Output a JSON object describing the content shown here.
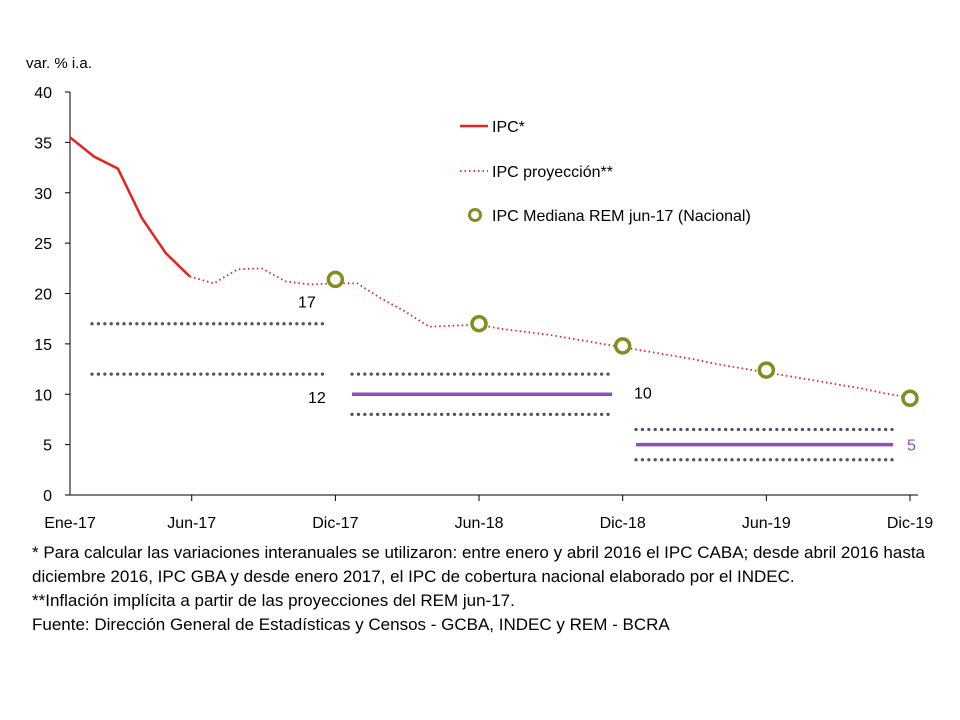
{
  "chart_data": {
    "type": "line",
    "ylabel": "var. % i.a.",
    "ylim": [
      0,
      40
    ],
    "yticks": [
      0,
      5,
      10,
      15,
      20,
      25,
      30,
      35,
      40
    ],
    "x_tick_labels": [
      "Ene-17",
      "Jun-17",
      "Dic-17",
      "Jun-18",
      "Dic-18",
      "Jun-19",
      "Dic-19"
    ],
    "legend_position": "top-right",
    "series": [
      {
        "name": "IPC*",
        "style": "solid",
        "color": "#e8201e",
        "points": [
          {
            "x": "2017-01",
            "y": 35.5
          },
          {
            "x": "2017-02",
            "y": 33.6
          },
          {
            "x": "2017-03",
            "y": 32.4
          },
          {
            "x": "2017-04",
            "y": 27.5
          },
          {
            "x": "2017-05",
            "y": 24.0
          },
          {
            "x": "2017-06",
            "y": 21.7
          }
        ]
      },
      {
        "name": "IPC proyección**",
        "style": "dotted",
        "color": "#e8201e",
        "points": [
          {
            "x": "2017-06",
            "y": 21.7
          },
          {
            "x": "2017-07",
            "y": 21.0
          },
          {
            "x": "2017-08",
            "y": 22.4
          },
          {
            "x": "2017-09",
            "y": 22.5
          },
          {
            "x": "2017-10",
            "y": 21.2
          },
          {
            "x": "2017-11",
            "y": 20.9
          },
          {
            "x": "2017-12",
            "y": 21.0
          },
          {
            "x": "2018-01",
            "y": 21.0
          },
          {
            "x": "2018-02",
            "y": 19.5
          },
          {
            "x": "2018-03",
            "y": 18.2
          },
          {
            "x": "2018-04",
            "y": 16.7
          },
          {
            "x": "2018-05",
            "y": 16.8
          },
          {
            "x": "2018-06",
            "y": 16.9
          },
          {
            "x": "2018-07",
            "y": 16.5
          },
          {
            "x": "2018-08",
            "y": 16.2
          },
          {
            "x": "2018-09",
            "y": 15.9
          },
          {
            "x": "2018-10",
            "y": 15.5
          },
          {
            "x": "2018-11",
            "y": 15.1
          },
          {
            "x": "2018-12",
            "y": 14.7
          },
          {
            "x": "2019-01",
            "y": 14.3
          },
          {
            "x": "2019-02",
            "y": 13.9
          },
          {
            "x": "2019-03",
            "y": 13.5
          },
          {
            "x": "2019-04",
            "y": 13.0
          },
          {
            "x": "2019-05",
            "y": 12.6
          },
          {
            "x": "2019-06",
            "y": 12.2
          },
          {
            "x": "2019-07",
            "y": 11.8
          },
          {
            "x": "2019-08",
            "y": 11.4
          },
          {
            "x": "2019-09",
            "y": 11.0
          },
          {
            "x": "2019-10",
            "y": 10.6
          },
          {
            "x": "2019-11",
            "y": 10.1
          },
          {
            "x": "2019-12",
            "y": 9.7
          }
        ]
      },
      {
        "name": "IPC Mediana REM jun-17 (Nacional)",
        "style": "markers",
        "color": "#7f8f1f",
        "points": [
          {
            "x": "2017-12",
            "y": 21.4
          },
          {
            "x": "2018-06",
            "y": 17.0
          },
          {
            "x": "2018-12",
            "y": 14.8
          },
          {
            "x": "2019-06",
            "y": 12.4
          },
          {
            "x": "2019-12",
            "y": 9.6
          }
        ]
      }
    ],
    "target_bands": [
      {
        "x_start": "2017-01",
        "x_end": "2017-12",
        "lower": 12,
        "upper": 17,
        "center": null,
        "label_upper": "17",
        "label_lower": "12",
        "label_center": null
      },
      {
        "x_start": "2018-01",
        "x_end": "2018-12",
        "lower": 8,
        "upper": 12,
        "center": 10,
        "label_upper": null,
        "label_lower": null,
        "label_center": "10"
      },
      {
        "x_start": "2019-01",
        "x_end": "2019-12",
        "lower": 3.5,
        "upper": 6.5,
        "center": 5,
        "label_upper": null,
        "label_lower": null,
        "label_center": "5"
      }
    ],
    "colors": {
      "ipc": "#e8201e",
      "rem_marker": "#7f8f1f",
      "band_dots": "#4a5564",
      "target_center": "#8f4ec0",
      "axis": "#000000"
    }
  },
  "notes": [
    "* Para calcular las variaciones interanuales se utilizaron: entre enero y abril 2016 el IPC CABA; desde abril 2016 hasta diciembre 2016, IPC GBA y desde enero 2017, el IPC de cobertura nacional elaborado por el INDEC.",
    "**Inflación implícita a partir de las proyecciones del REM jun-17.",
    "Fuente: Dirección General de Estadísticas y Censos - GCBA, INDEC y REM - BCRA"
  ]
}
